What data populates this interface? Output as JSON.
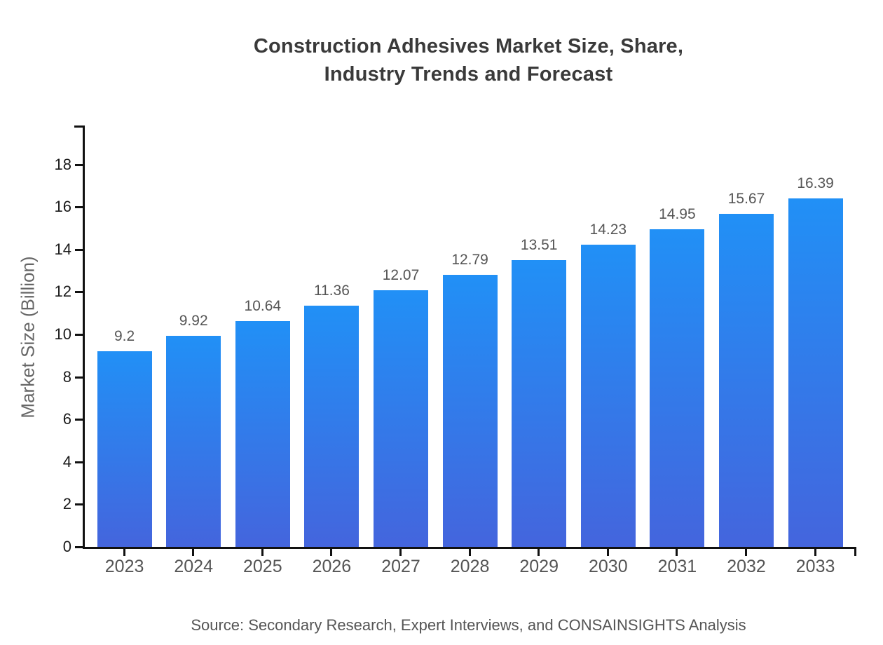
{
  "chart_data": {
    "type": "bar",
    "title_line1": "Construction Adhesives Market Size, Share,",
    "title_line2": "Industry Trends and Forecast",
    "ylabel": "Market Size (Billion)",
    "xlabel": "",
    "source": "Source: Secondary Research, Expert Interviews, and CONSAINSIGHTS Analysis",
    "categories": [
      "2023",
      "2024",
      "2025",
      "2026",
      "2027",
      "2028",
      "2029",
      "2030",
      "2031",
      "2032",
      "2033"
    ],
    "values": [
      9.2,
      9.92,
      10.64,
      11.36,
      12.07,
      12.79,
      13.51,
      14.23,
      14.95,
      15.67,
      16.39
    ],
    "value_labels": [
      "9.2",
      "9.92",
      "10.64",
      "11.36",
      "12.07",
      "12.79",
      "13.51",
      "14.23",
      "14.95",
      "15.67",
      "16.39"
    ],
    "yticks": [
      0,
      2,
      4,
      6,
      8,
      10,
      12,
      14,
      16,
      18
    ],
    "ylim": [
      0,
      19.8
    ],
    "grid": false,
    "legend": "none",
    "colors": {
      "bar_gradient_top": "#2190F6",
      "bar_gradient_bottom": "#4465DD",
      "axis": "#111111",
      "title": "#3a3a3a",
      "y_tick_label": "#1a1a1a",
      "x_tick_label": "#555555",
      "value_label": "#555555",
      "y_axis_title": "#666666",
      "source": "#555555",
      "background": "#ffffff"
    }
  }
}
